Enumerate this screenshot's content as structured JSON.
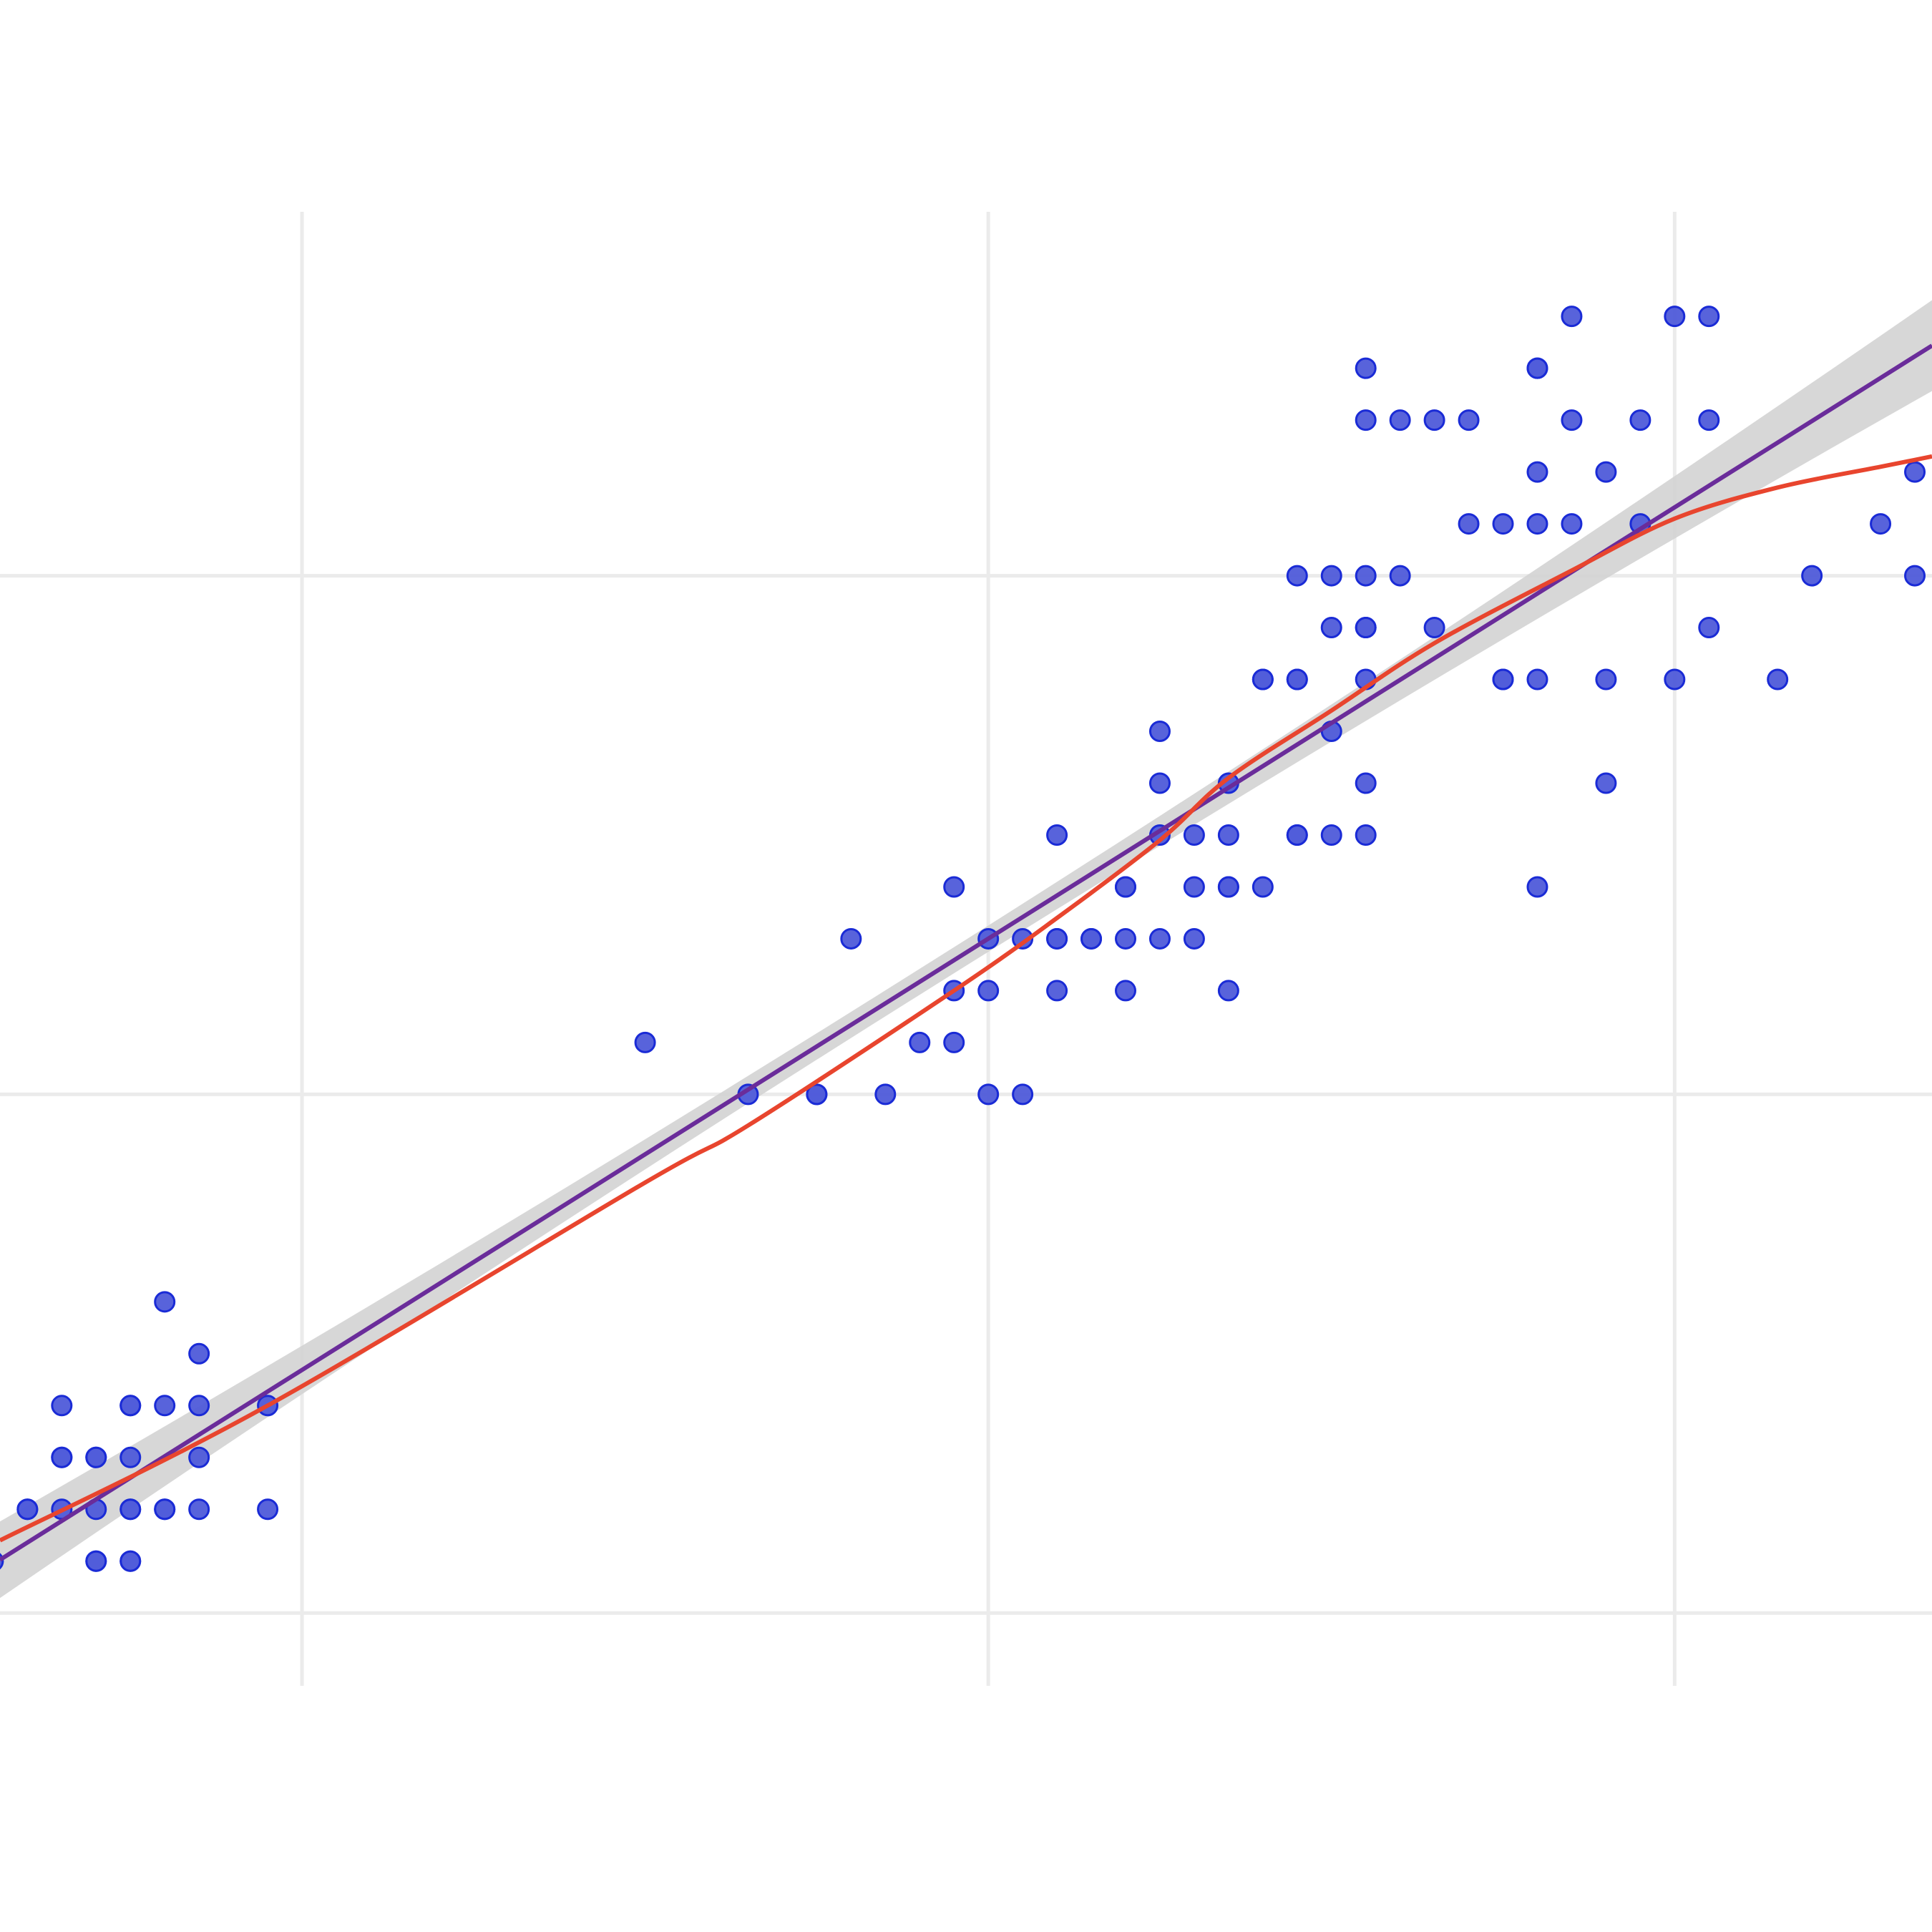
{
  "chart_data": {
    "type": "scatter",
    "title": "",
    "xlabel": "",
    "ylabel": "",
    "xlim": [
      1.12,
      6.75
    ],
    "ylim": [
      -0.615,
      3.11
    ],
    "x_gridlines": [
      2,
      4,
      6
    ],
    "y_gridlines": [
      0,
      1,
      2
    ],
    "grid": true,
    "legend": "none",
    "colors": {
      "point_fill": "#4f5bd9",
      "point_stroke": "#1a2bd6",
      "linear_fit": "#6a2c9a",
      "confidence_band": "#d3d3d3",
      "smooth_fit": "#e8452e",
      "grid": "#ebebeb"
    },
    "points": [
      [
        5.7,
        2.5,
        1
      ],
      [
        6.0,
        2.5,
        1
      ],
      [
        6.1,
        2.5,
        1
      ],
      [
        5.1,
        2.4,
        1
      ],
      [
        5.6,
        2.4,
        2
      ],
      [
        5.1,
        2.3,
        1
      ],
      [
        5.2,
        2.3,
        1
      ],
      [
        5.3,
        2.3,
        1
      ],
      [
        5.4,
        2.3,
        1
      ],
      [
        5.7,
        2.3,
        1
      ],
      [
        5.9,
        2.3,
        1
      ],
      [
        6.1,
        2.3,
        1
      ],
      [
        5.6,
        2.2,
        1
      ],
      [
        5.8,
        2.2,
        1
      ],
      [
        6.7,
        2.2,
        1
      ],
      [
        5.4,
        2.1,
        1
      ],
      [
        5.5,
        2.1,
        1
      ],
      [
        5.6,
        2.1,
        1
      ],
      [
        5.7,
        2.1,
        1
      ],
      [
        5.9,
        2.1,
        1
      ],
      [
        6.6,
        2.1,
        1
      ],
      [
        4.9,
        2.0,
        1
      ],
      [
        5.0,
        2.0,
        1
      ],
      [
        5.1,
        2.0,
        1
      ],
      [
        5.2,
        2.0,
        1
      ],
      [
        6.4,
        2.0,
        1
      ],
      [
        6.7,
        2.0,
        1
      ],
      [
        5.0,
        1.9,
        1
      ],
      [
        5.1,
        1.9,
        2
      ],
      [
        5.3,
        1.9,
        1
      ],
      [
        6.1,
        1.9,
        1
      ],
      [
        4.8,
        1.8,
        2
      ],
      [
        4.9,
        1.8,
        2
      ],
      [
        5.1,
        1.8,
        1
      ],
      [
        5.5,
        1.8,
        2
      ],
      [
        5.6,
        1.8,
        1
      ],
      [
        5.8,
        1.8,
        1
      ],
      [
        6.0,
        1.8,
        1
      ],
      [
        6.3,
        1.8,
        1
      ],
      [
        4.5,
        1.7,
        1
      ],
      [
        5.0,
        1.7,
        1
      ],
      [
        4.5,
        1.6,
        1
      ],
      [
        4.7,
        1.6,
        1
      ],
      [
        5.1,
        1.6,
        1
      ],
      [
        5.8,
        1.6,
        1
      ],
      [
        4.2,
        1.5,
        1
      ],
      [
        4.5,
        1.5,
        1
      ],
      [
        4.6,
        1.5,
        1
      ],
      [
        4.7,
        1.5,
        1
      ],
      [
        4.9,
        1.5,
        2
      ],
      [
        5.0,
        1.5,
        1
      ],
      [
        5.1,
        1.5,
        1
      ],
      [
        3.9,
        1.4,
        1
      ],
      [
        4.4,
        1.4,
        2
      ],
      [
        4.6,
        1.4,
        1
      ],
      [
        4.7,
        1.4,
        2
      ],
      [
        4.8,
        1.4,
        1
      ],
      [
        5.6,
        1.4,
        1
      ],
      [
        3.6,
        1.3,
        1
      ],
      [
        4.0,
        1.3,
        1
      ],
      [
        4.1,
        1.3,
        1
      ],
      [
        4.2,
        1.3,
        2
      ],
      [
        4.3,
        1.3,
        2
      ],
      [
        4.4,
        1.3,
        1
      ],
      [
        4.5,
        1.3,
        1
      ],
      [
        4.6,
        1.3,
        1
      ],
      [
        3.9,
        1.2,
        1
      ],
      [
        4.0,
        1.2,
        1
      ],
      [
        4.2,
        1.2,
        1
      ],
      [
        4.4,
        1.2,
        1
      ],
      [
        4.7,
        1.2,
        1
      ],
      [
        3.0,
        1.1,
        1
      ],
      [
        3.8,
        1.1,
        1
      ],
      [
        3.9,
        1.1,
        1
      ],
      [
        3.3,
        1.0,
        1
      ],
      [
        3.5,
        1.0,
        2
      ],
      [
        3.7,
        1.0,
        1
      ],
      [
        4.0,
        1.0,
        1
      ],
      [
        4.1,
        1.0,
        1
      ],
      [
        1.6,
        0.6,
        1
      ],
      [
        1.7,
        0.5,
        1
      ],
      [
        1.3,
        0.4,
        1
      ],
      [
        1.5,
        0.4,
        2
      ],
      [
        1.6,
        0.4,
        1
      ],
      [
        1.7,
        0.4,
        1
      ],
      [
        1.9,
        0.4,
        1
      ],
      [
        1.3,
        0.3,
        2
      ],
      [
        1.4,
        0.3,
        2
      ],
      [
        1.5,
        0.3,
        1
      ],
      [
        1.7,
        0.3,
        1
      ],
      [
        1.1,
        0.1,
        1
      ],
      [
        1.2,
        0.2,
        2
      ],
      [
        1.3,
        0.2,
        1
      ],
      [
        1.4,
        0.2,
        1
      ],
      [
        1.5,
        0.2,
        2
      ],
      [
        1.6,
        0.2,
        2
      ],
      [
        1.7,
        0.2,
        1
      ],
      [
        1.9,
        0.2,
        1
      ],
      [
        1.4,
        0.1,
        2
      ],
      [
        1.5,
        0.1,
        2
      ]
    ],
    "linear_fit": {
      "intercept": -0.363,
      "slope": 0.4158
    },
    "smooth_fit": {
      "x": [
        1.12,
        1.9,
        3.0,
        3.3,
        3.9,
        4.2,
        4.5,
        4.7,
        5.0,
        5.3,
        5.7,
        6.0,
        6.3,
        6.6,
        6.75
      ],
      "y": [
        0.14,
        0.4,
        0.83,
        0.94,
        1.2,
        1.34,
        1.49,
        1.61,
        1.74,
        1.87,
        2.01,
        2.11,
        2.17,
        2.21,
        2.23
      ]
    }
  }
}
